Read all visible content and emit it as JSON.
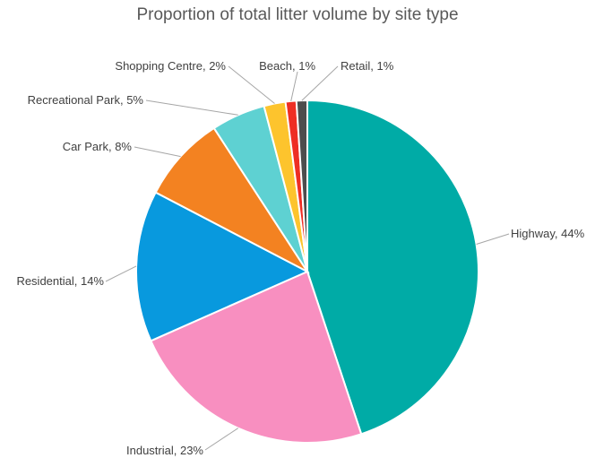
{
  "chart_data": {
    "type": "pie",
    "title": "Proportion of total litter volume by site type",
    "slices": [
      {
        "name": "Highway",
        "value": 44,
        "label": "Highway, 44%",
        "color": "#00ABA6"
      },
      {
        "name": "Industrial",
        "value": 23,
        "label": "Industrial, 23%",
        "color": "#F88FC0"
      },
      {
        "name": "Residential",
        "value": 14,
        "label": "Residential, 14%",
        "color": "#0899DE"
      },
      {
        "name": "Car Park",
        "value": 8,
        "label": "Car Park, 8%",
        "color": "#F38221"
      },
      {
        "name": "Recreational Park",
        "value": 5,
        "label": "Recreational Park, 5%",
        "color": "#5ED1D2"
      },
      {
        "name": "Shopping Centre",
        "value": 2,
        "label": "Shopping Centre, 2%",
        "color": "#FDC42D"
      },
      {
        "name": "Beach",
        "value": 1,
        "label": "Beach, 1%",
        "color": "#EE2E24"
      },
      {
        "name": "Retail",
        "value": 1,
        "label": "Retail, 1%",
        "color": "#4D4D4D"
      }
    ]
  }
}
